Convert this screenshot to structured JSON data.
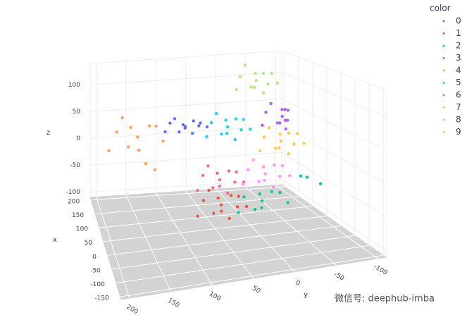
{
  "chart_data": {
    "type": "scatter3d",
    "xlabel": "x",
    "ylabel": "y",
    "zlabel": "z",
    "legend_title": "color",
    "xlim": [
      -160,
      210
    ],
    "ylim": [
      -110,
      210
    ],
    "zlim": [
      -110,
      140
    ],
    "xticks": [
      -150,
      -100,
      -50,
      0,
      50,
      100,
      150,
      200
    ],
    "yticks": [
      -100,
      -50,
      0,
      50,
      100,
      150,
      200
    ],
    "zticks": [
      -100,
      -50,
      0,
      50,
      100
    ],
    "series": [
      {
        "name": "0",
        "color": "#636efa",
        "x": [
          136,
          144,
          126,
          151,
          124,
          141,
          130,
          156,
          118,
          146,
          132,
          150
        ],
        "y": [
          72,
          57,
          84,
          92,
          52,
          102,
          40,
          67,
          80,
          86,
          62,
          47
        ],
        "z": [
          38,
          44,
          33,
          41,
          46,
          30,
          36,
          28,
          48,
          50,
          26,
          32
        ]
      },
      {
        "name": "1",
        "color": "#ef553b",
        "x": [
          -49,
          -41,
          -59,
          -34,
          -61,
          -44,
          -55,
          -29,
          -67,
          -39,
          -53,
          -35
        ],
        "y": [
          66,
          51,
          78,
          86,
          46,
          96,
          34,
          61,
          74,
          80,
          56,
          41
        ],
        "z": [
          -32,
          -22,
          -40,
          -27,
          -18,
          -47,
          -38,
          -50,
          -14,
          -10,
          -54,
          -44
        ]
      },
      {
        "name": "2",
        "color": "#00cc96",
        "x": [
          -49,
          -41,
          -59,
          -34,
          -61,
          -44,
          -55,
          -29,
          -67,
          -10,
          -20,
          -30
        ],
        "y": [
          12,
          -3,
          24,
          32,
          -8,
          42,
          -20,
          7,
          20,
          -60,
          -75,
          -45
        ],
        "z": [
          -35,
          -25,
          -43,
          -30,
          -21,
          -50,
          -41,
          -53,
          -17,
          -20,
          -30,
          -10
        ]
      },
      {
        "name": "3",
        "color": "#ab63fa",
        "x": [
          173,
          181,
          163,
          188,
          161,
          178,
          167,
          193,
          155,
          183,
          169,
          187
        ],
        "y": [
          -94,
          -102,
          -82,
          -74,
          -98,
          -64,
          -100,
          -99,
          -86,
          -80,
          -98,
          -105
        ],
        "z": [
          29,
          39,
          21,
          34,
          43,
          14,
          23,
          11,
          47,
          51,
          7,
          17
        ]
      },
      {
        "name": "4",
        "color": "#ffa15a",
        "x": [
          136,
          144,
          126,
          151,
          124,
          141,
          130,
          156,
          118,
          146,
          132,
          150
        ],
        "y": [
          146,
          126,
          162,
          176,
          120,
          190,
          108,
          140,
          160,
          168,
          134,
          116
        ],
        "z": [
          27,
          42,
          15,
          33,
          48,
          5,
          18,
          -5,
          52,
          60,
          -20,
          -40
        ]
      },
      {
        "name": "5",
        "color": "#19d3f3",
        "x": [
          99,
          107,
          89,
          114,
          87,
          104,
          93,
          119,
          81,
          109,
          95,
          113
        ],
        "y": [
          18,
          3,
          30,
          38,
          -2,
          48,
          -14,
          13,
          26,
          32,
          8,
          -7
        ],
        "z": [
          43,
          53,
          35,
          48,
          57,
          28,
          37,
          25,
          61,
          65,
          21,
          31
        ]
      },
      {
        "name": "6",
        "color": "#ff6692",
        "x": [
          25,
          33,
          15,
          40,
          13,
          30,
          19,
          45,
          7,
          35,
          21,
          39
        ],
        "y": [
          50,
          35,
          62,
          70,
          30,
          80,
          18,
          45,
          58,
          64,
          40,
          25
        ],
        "z": [
          -19,
          -9,
          -27,
          -14,
          -5,
          -34,
          -25,
          -37,
          -1,
          3,
          -41,
          -31
        ]
      },
      {
        "name": "7",
        "color": "#b6e880",
        "x": [
          173,
          181,
          163,
          188,
          161,
          178,
          167,
          193,
          155,
          183,
          169,
          187
        ],
        "y": [
          -52,
          -67,
          -40,
          -32,
          -72,
          -22,
          -84,
          -57,
          -44,
          -38,
          -62,
          -77
        ],
        "z": [
          98,
          108,
          90,
          103,
          112,
          83,
          92,
          80,
          116,
          125,
          76,
          86
        ]
      },
      {
        "name": "8",
        "color": "#ff97ff",
        "x": [
          25,
          33,
          15,
          40,
          13,
          30,
          19,
          45,
          7,
          35,
          21,
          39
        ],
        "y": [
          -14,
          -29,
          -2,
          6,
          -34,
          16,
          -46,
          -19,
          -6,
          0,
          -24,
          -39
        ],
        "z": [
          -18,
          -8,
          -26,
          -13,
          -4,
          -33,
          -24,
          -36,
          0,
          4,
          -40,
          -30
        ]
      },
      {
        "name": "9",
        "color": "#fecb52",
        "x": [
          99,
          107,
          89,
          114,
          87,
          104,
          93,
          119,
          81,
          109,
          95,
          113
        ],
        "y": [
          -62,
          -77,
          -50,
          -42,
          -82,
          -32,
          -94,
          -67,
          -54,
          -48,
          -72,
          -87
        ],
        "z": [
          9,
          19,
          1,
          14,
          23,
          -6,
          3,
          -9,
          27,
          31,
          -13,
          -3
        ]
      }
    ]
  },
  "watermark": "微信号: deephub-imba"
}
